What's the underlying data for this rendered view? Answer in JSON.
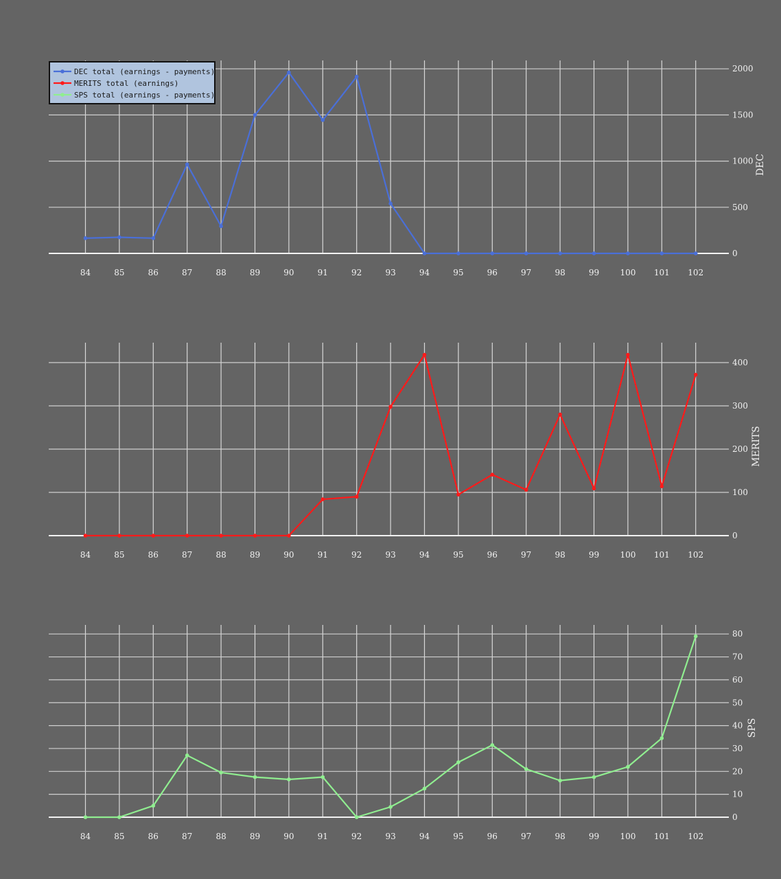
{
  "legend": {
    "items": [
      {
        "label": "DEC total (earnings - payments)",
        "color": "#4a6fd8"
      },
      {
        "label": "MERITS  total (earnings)",
        "color": "#ff1a1a"
      },
      {
        "label": "SPS total (earnings - payments)",
        "color": "#90ee90"
      }
    ]
  },
  "chart_data": [
    {
      "type": "line",
      "x": [
        84,
        85,
        86,
        87,
        88,
        89,
        90,
        91,
        92,
        93,
        94,
        95,
        96,
        97,
        98,
        99,
        100,
        101,
        102
      ],
      "series": [
        {
          "name": "DEC total (earnings - payments)",
          "color": "#4a6fd8",
          "values": [
            165,
            175,
            165,
            965,
            295,
            1500,
            1960,
            1445,
            1915,
            540,
            0,
            0,
            0,
            0,
            0,
            0,
            0,
            0,
            0
          ]
        }
      ],
      "yticks": [
        0,
        500,
        1000,
        1500,
        2000
      ],
      "ylim": [
        0,
        2000
      ],
      "ylabel": "DEC",
      "grid": true
    },
    {
      "type": "line",
      "x": [
        84,
        85,
        86,
        87,
        88,
        89,
        90,
        91,
        92,
        93,
        94,
        95,
        96,
        97,
        98,
        99,
        100,
        101,
        102
      ],
      "series": [
        {
          "name": "MERITS  total (earnings)",
          "color": "#ff1a1a",
          "values": [
            0,
            0,
            0,
            0,
            0,
            0,
            0,
            84,
            90,
            298,
            418,
            95,
            141,
            106,
            280,
            109,
            418,
            114,
            372
          ]
        }
      ],
      "yticks": [
        0,
        100,
        200,
        300,
        400
      ],
      "ylim": [
        0,
        400
      ],
      "ylabel": "MERITS",
      "grid": true
    },
    {
      "type": "line",
      "x": [
        84,
        85,
        86,
        87,
        88,
        89,
        90,
        91,
        92,
        93,
        94,
        95,
        96,
        97,
        98,
        99,
        100,
        101,
        102
      ],
      "series": [
        {
          "name": "SPS total (earnings - payments)",
          "color": "#90ee90",
          "values": [
            0,
            0,
            5,
            27,
            19.5,
            17.5,
            16.5,
            17.5,
            0,
            4.5,
            12.5,
            24,
            31.5,
            21,
            16,
            17.5,
            22,
            34.5,
            79
          ]
        }
      ],
      "yticks": [
        0,
        10,
        20,
        30,
        40,
        50,
        60,
        70,
        80
      ],
      "ylim": [
        0,
        80
      ],
      "ylabel": "SPS",
      "grid": true
    }
  ]
}
